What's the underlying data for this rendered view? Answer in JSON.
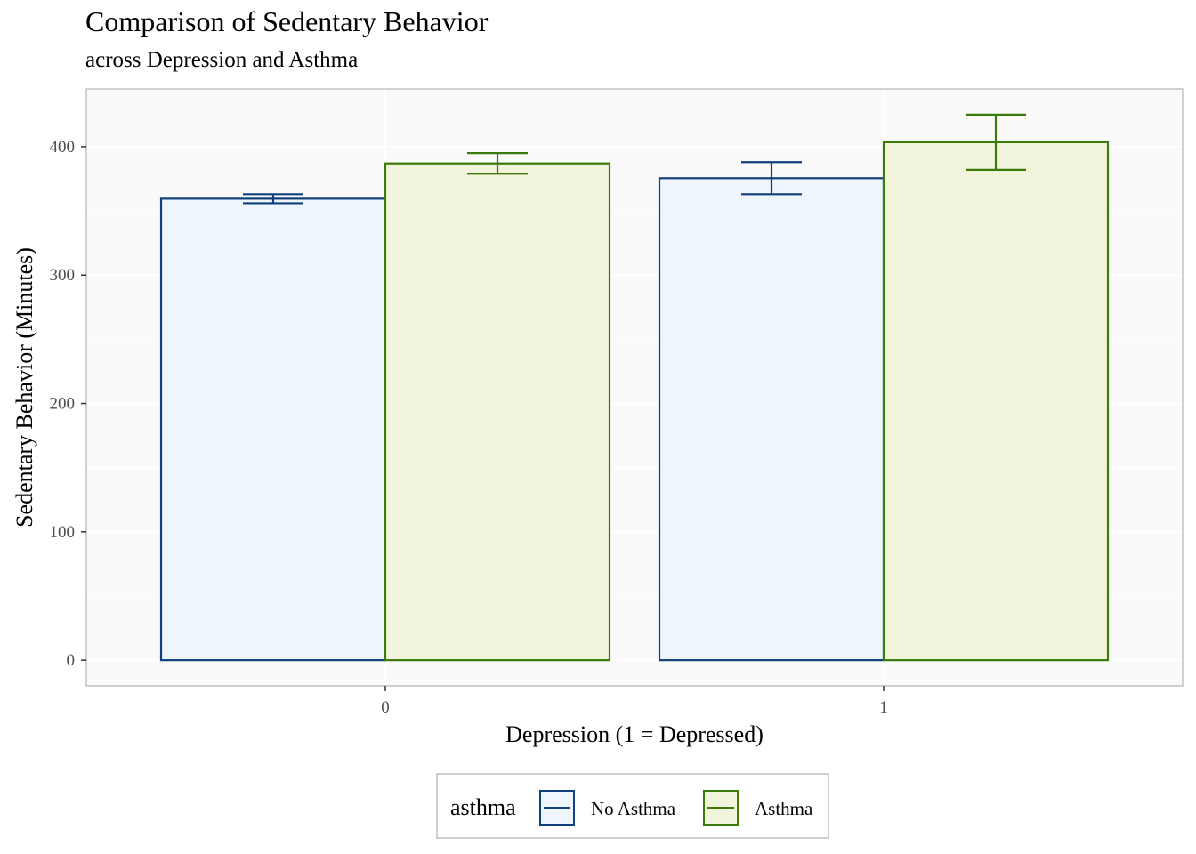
{
  "title": "Comparison of Sedentary Behavior",
  "subtitle": "across Depression and Asthma",
  "chart_data": {
    "type": "bar",
    "title": "Comparison of Sedentary Behavior",
    "subtitle": "across Depression and Asthma",
    "xlabel": "Depression (1 = Depressed)",
    "ylabel": "Sedentary Behavior (Minutes)",
    "categories": [
      "0",
      "1"
    ],
    "ylim": [
      -20,
      445
    ],
    "yticks": [
      0,
      100,
      200,
      300,
      400
    ],
    "grid": true,
    "legend": {
      "title": "asthma",
      "position": "bottom"
    },
    "series": [
      {
        "name": "No Asthma",
        "values": [
          359.5,
          375.5
        ],
        "error_low": [
          356,
          363
        ],
        "error_high": [
          363,
          388
        ],
        "fill": "#eef5fc",
        "stroke": "#123f7b"
      },
      {
        "name": "Asthma",
        "values": [
          387,
          403.5
        ],
        "error_low": [
          379,
          382
        ],
        "error_high": [
          395,
          425
        ],
        "fill": "#f3f4dc",
        "stroke": "#3a7b0a"
      }
    ]
  }
}
